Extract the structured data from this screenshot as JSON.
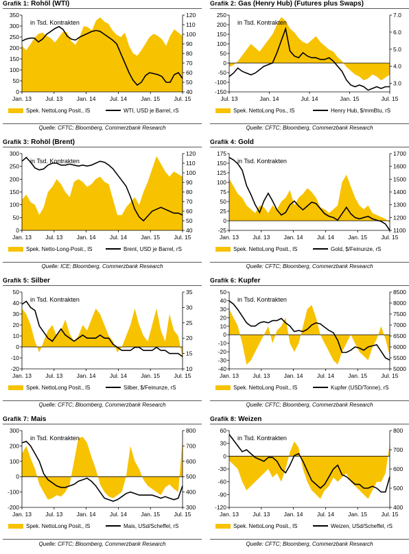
{
  "colors": {
    "fill": "#f7c200",
    "line": "#000000",
    "axis": "#000000"
  },
  "chart_data": [
    {
      "type": "area",
      "prefix": "Grafik 1:",
      "title": "Rohöl (WTI)",
      "annotation": "in Tsd. Kontrakten",
      "source": "Quelle: CFTC; Bloomberg, Commerzbank Research",
      "xticks": [
        "Jan. 13",
        "Jul. 13",
        "Jan. 14",
        "Jul. 14",
        "Jan. 15",
        "Jul. 15"
      ],
      "ylim": [
        0,
        350
      ],
      "yticks": [
        0,
        50,
        100,
        150,
        200,
        250,
        300,
        350
      ],
      "y2lim": [
        40,
        120
      ],
      "y2ticks": [
        40,
        50,
        60,
        70,
        80,
        90,
        100,
        110,
        120
      ],
      "series": [
        {
          "name": "Spek. NettoLong Posit., lS",
          "axis": "left",
          "values": [
            210,
            190,
            215,
            245,
            265,
            270,
            255,
            245,
            225,
            250,
            275,
            270,
            230,
            215,
            250,
            300,
            295,
            280,
            325,
            340,
            320,
            310,
            280,
            260,
            250,
            270,
            210,
            175,
            165,
            190,
            220,
            250,
            265,
            255,
            240,
            210,
            255,
            285,
            270,
            255
          ]
        },
        {
          "name": "WTI, USD je Barrel, rS",
          "axis": "right",
          "values": [
            93,
            95,
            96,
            96,
            92,
            95,
            100,
            103,
            106,
            108,
            105,
            98,
            95,
            94,
            97,
            99,
            101,
            103,
            104,
            103,
            100,
            97,
            94,
            90,
            80,
            70,
            60,
            52,
            47,
            50,
            57,
            60,
            59,
            58,
            56,
            50,
            50,
            58,
            60,
            54
          ]
        }
      ]
    },
    {
      "type": "area",
      "prefix": "Grafik 2:",
      "title": "Gas (Henry Hub) (Futures plus Swaps)",
      "annotation": "in Tsd. Kontrakten",
      "source": "Quelle: CFTC; Bloomberg, Commerzbank Research",
      "xticks": [
        "Jul. 13",
        "Jan. 14",
        "Jul. 14",
        "Jan. 15",
        "Jul. 15"
      ],
      "ylim": [
        -150,
        250
      ],
      "yticks": [
        -150,
        -100,
        -50,
        0,
        50,
        100,
        150,
        200,
        250
      ],
      "y2lim": [
        2.5,
        7.0
      ],
      "y2ticks": [
        3.0,
        4.0,
        5.0,
        6.0,
        7.0
      ],
      "series": [
        {
          "name": "Spek. NettoLong Pos., lS",
          "axis": "left",
          "values": [
            -20,
            -10,
            10,
            40,
            70,
            100,
            80,
            60,
            90,
            120,
            150,
            200,
            240,
            220,
            180,
            160,
            130,
            110,
            100,
            120,
            140,
            110,
            90,
            70,
            60,
            30,
            10,
            -20,
            -40,
            -60,
            -70,
            -90,
            -80,
            -60,
            -70,
            -90,
            -75,
            -60
          ]
        },
        {
          "name": "Henry Hub, $/mmBtu, rS",
          "axis": "right",
          "values": [
            3.4,
            3.6,
            3.9,
            3.7,
            3.6,
            3.5,
            3.6,
            3.8,
            4.0,
            4.1,
            4.2,
            4.8,
            5.5,
            6.2,
            4.9,
            4.6,
            4.5,
            4.8,
            4.6,
            4.5,
            4.5,
            4.4,
            4.4,
            4.5,
            4.3,
            4.0,
            3.7,
            3.2,
            2.9,
            2.8,
            2.9,
            2.8,
            2.6,
            2.7,
            2.8,
            2.7,
            2.8,
            2.8
          ]
        }
      ]
    },
    {
      "type": "area",
      "prefix": "Grafik 3:",
      "title": "Rohöl (Brent)",
      "annotation": "in Tsd. Kontrakten",
      "source": "Quelle: ICE; Bloomberg, Commerzbank Research",
      "xticks": [
        "Jan. 13",
        "Jul. 13",
        "Jan. 14",
        "Jul. 14",
        "Jan. 15",
        "Jul. 15"
      ],
      "ylim": [
        0,
        300
      ],
      "yticks": [
        0,
        50,
        100,
        150,
        200,
        250,
        300
      ],
      "y2lim": [
        40,
        120
      ],
      "y2ticks": [
        40,
        50,
        60,
        70,
        80,
        90,
        100,
        110,
        120
      ],
      "series": [
        {
          "name": "Spek. Netto-Long-Posit., lS",
          "axis": "left",
          "values": [
            120,
            140,
            110,
            100,
            60,
            90,
            150,
            170,
            200,
            180,
            150,
            130,
            190,
            200,
            190,
            170,
            180,
            200,
            210,
            190,
            180,
            120,
            60,
            60,
            90,
            110,
            130,
            100,
            150,
            190,
            240,
            290,
            260,
            230,
            210,
            230,
            220,
            210
          ]
        },
        {
          "name": "Brent, USD je Barrel, rS",
          "axis": "right",
          "values": [
            112,
            116,
            111,
            105,
            103,
            104,
            108,
            110,
            110,
            108,
            108,
            109,
            108,
            107,
            108,
            107,
            108,
            110,
            112,
            111,
            108,
            104,
            98,
            92,
            86,
            75,
            62,
            54,
            50,
            55,
            60,
            62,
            64,
            62,
            60,
            58,
            58,
            56
          ]
        }
      ]
    },
    {
      "type": "area",
      "prefix": "Grafik 4:",
      "title": "Gold",
      "annotation": "in Tsd. Kontrakten",
      "source": "Quelle: CFTC; Bloomberg, Commerzbank Research",
      "xticks": [
        "Jan. 13",
        "Jul. 13",
        "Jan. 14",
        "Jul. 14",
        "Jan. 15",
        "Jul. 15"
      ],
      "ylim": [
        -25,
        175
      ],
      "yticks": [
        -25,
        0,
        25,
        50,
        75,
        100,
        125,
        150,
        175
      ],
      "y2lim": [
        1100,
        1700
      ],
      "y2ticks": [
        1100,
        1200,
        1300,
        1400,
        1500,
        1600,
        1700
      ],
      "series": [
        {
          "name": "Spek. NettoLong Posit., lS",
          "axis": "left",
          "values": [
            110,
            90,
            70,
            60,
            40,
            30,
            20,
            40,
            35,
            20,
            40,
            30,
            50,
            60,
            80,
            40,
            60,
            70,
            85,
            75,
            60,
            35,
            30,
            20,
            30,
            40,
            100,
            120,
            90,
            60,
            40,
            30,
            40,
            20,
            15,
            10,
            5,
            -5
          ]
        },
        {
          "name": "Gold, $/Feinunze, rS",
          "axis": "right",
          "values": [
            1670,
            1650,
            1620,
            1570,
            1450,
            1380,
            1300,
            1240,
            1330,
            1390,
            1330,
            1260,
            1220,
            1240,
            1300,
            1330,
            1290,
            1260,
            1290,
            1320,
            1310,
            1270,
            1230,
            1210,
            1200,
            1180,
            1230,
            1280,
            1230,
            1200,
            1190,
            1200,
            1210,
            1190,
            1180,
            1170,
            1150,
            1100
          ]
        }
      ]
    },
    {
      "type": "area",
      "prefix": "Grafik 5:",
      "title": "Silber",
      "annotation": "in Tsd. Kontrakten",
      "source": "Quelle: CFTC; Bloomberg, Commerzbank Research",
      "xticks": [
        "Jan. 13",
        "Jul. 13",
        "Jan. 14",
        "Jul. 14",
        "Jan. 15",
        "Jul. 15"
      ],
      "ylim": [
        -20,
        50
      ],
      "yticks": [
        -20,
        -10,
        0,
        10,
        20,
        30,
        40,
        50
      ],
      "y2lim": [
        10,
        35
      ],
      "y2ticks": [
        10,
        15,
        20,
        25,
        30,
        35
      ],
      "series": [
        {
          "name": "Spek. NettoLong Posit., lS",
          "axis": "left",
          "values": [
            35,
            30,
            20,
            5,
            -5,
            5,
            15,
            20,
            10,
            15,
            25,
            12,
            5,
            10,
            20,
            15,
            25,
            35,
            30,
            20,
            10,
            5,
            -5,
            0,
            10,
            20,
            35,
            20,
            10,
            5,
            20,
            35,
            15,
            5,
            30,
            15,
            10,
            -10
          ]
        },
        {
          "name": "Silber, $/Feinunze, rS",
          "axis": "right",
          "values": [
            31,
            32,
            30,
            29,
            24,
            22,
            20,
            19,
            21,
            23,
            21,
            20,
            19,
            20,
            21,
            20,
            20,
            20,
            21,
            20,
            20,
            18,
            17,
            16,
            16,
            16,
            17,
            17,
            16,
            16,
            16,
            17,
            16,
            16,
            15,
            15,
            15,
            14
          ]
        }
      ]
    },
    {
      "type": "area",
      "prefix": "Grafik 6:",
      "title": "Kupfer",
      "annotation": "in Tsd. Kontrakten",
      "source": "Quelle: CFTC; Bloomberg, Commerzbank Research",
      "xticks": [
        "Jan. 13",
        "Jul. 13",
        "Jan. 14",
        "Jul. 14",
        "Jan. 15",
        "Jul. 15"
      ],
      "ylim": [
        -40,
        50
      ],
      "yticks": [
        -40,
        -30,
        -20,
        -10,
        0,
        10,
        20,
        30,
        40,
        50
      ],
      "y2lim": [
        5000,
        8500
      ],
      "y2ticks": [
        5000,
        5500,
        6000,
        6500,
        7000,
        7500,
        8000,
        8500
      ],
      "series": [
        {
          "name": "Spek. NettoLong Posit., lS",
          "axis": "left",
          "values": [
            30,
            20,
            10,
            -10,
            -35,
            -30,
            -20,
            -10,
            0,
            10,
            -10,
            5,
            10,
            20,
            -10,
            -20,
            -10,
            10,
            30,
            35,
            20,
            0,
            -10,
            -20,
            -30,
            -35,
            -20,
            -10,
            0,
            -10,
            -20,
            -25,
            -30,
            -15,
            -5,
            10,
            -5,
            -25
          ]
        },
        {
          "name": "Kupfer (USD/Tonne), rS",
          "axis": "right",
          "values": [
            8100,
            7950,
            7700,
            7400,
            7100,
            6950,
            6950,
            7100,
            7150,
            7100,
            7200,
            7200,
            7300,
            7100,
            6950,
            6700,
            6750,
            6700,
            6800,
            7000,
            7100,
            7050,
            6900,
            6750,
            6650,
            6300,
            5750,
            5750,
            5850,
            6000,
            5950,
            5850,
            6000,
            6050,
            6100,
            5800,
            5500,
            5400
          ]
        }
      ]
    },
    {
      "type": "area",
      "prefix": "Grafik 7:",
      "title": "Mais",
      "annotation": "in Tsd. Kontrakten",
      "source": "Quelle: CFTC; Bloomberg, Commerzbank Research",
      "xticks": [
        "Jan. 13",
        "Jul. 13",
        "Jan. 14",
        "Jul. 14",
        "Jan. 15",
        "Jul. 15"
      ],
      "ylim": [
        -200,
        300
      ],
      "yticks": [
        -200,
        -100,
        0,
        100,
        200,
        300
      ],
      "y2lim": [
        300,
        800
      ],
      "y2ticks": [
        300,
        400,
        500,
        600,
        700,
        800
      ],
      "series": [
        {
          "name": "Spek. NettoLong Posit., lS",
          "axis": "left",
          "values": [
            150,
            200,
            120,
            50,
            -50,
            -100,
            -150,
            -140,
            -120,
            -130,
            -100,
            -50,
            100,
            250,
            260,
            220,
            130,
            50,
            -50,
            -100,
            -130,
            -140,
            -120,
            -100,
            0,
            200,
            100,
            50,
            -20,
            -60,
            -80,
            -100,
            -120,
            -70,
            -50,
            -80,
            -100,
            240
          ]
        },
        {
          "name": "Mais, USd/Scheffel, rS",
          "axis": "right",
          "values": [
            720,
            730,
            700,
            650,
            600,
            520,
            480,
            460,
            440,
            430,
            430,
            440,
            450,
            470,
            480,
            490,
            470,
            440,
            400,
            360,
            350,
            340,
            350,
            370,
            390,
            400,
            390,
            380,
            380,
            380,
            380,
            370,
            360,
            370,
            360,
            350,
            360,
            440
          ]
        }
      ]
    },
    {
      "type": "area",
      "prefix": "Grafik 8:",
      "title": "Weizen",
      "annotation": "in Tsd. Kontrakten",
      "source": "Quelle: CFTC; Bloomberg, Commerzbank Research",
      "xticks": [
        "Jan. 13",
        "Jul. 13",
        "Jan. 14",
        "Jul. 14",
        "Jan. 15",
        "Jul. 15"
      ],
      "ylim": [
        -120,
        60
      ],
      "yticks": [
        -120,
        -90,
        -60,
        -30,
        0,
        30,
        60
      ],
      "y2lim": [
        400,
        800
      ],
      "y2ticks": [
        400,
        500,
        600,
        700,
        800
      ],
      "series": [
        {
          "name": "Spek. NettoLong Posit., lS",
          "axis": "left",
          "values": [
            -10,
            -20,
            -30,
            -60,
            -80,
            -70,
            -60,
            -50,
            -40,
            -30,
            -50,
            -40,
            -60,
            -30,
            10,
            35,
            20,
            -30,
            -60,
            -80,
            -90,
            -100,
            -80,
            -70,
            -50,
            -60,
            -50,
            -40,
            -60,
            -70,
            -80,
            -90,
            -100,
            -80,
            -60,
            -60,
            -40,
            30
          ]
        },
        {
          "name": "Weizen, USd/Scheffel, rS",
          "axis": "right",
          "values": [
            780,
            750,
            720,
            690,
            700,
            680,
            660,
            650,
            640,
            660,
            660,
            640,
            600,
            580,
            620,
            670,
            680,
            640,
            590,
            540,
            520,
            500,
            520,
            560,
            600,
            620,
            570,
            560,
            540,
            520,
            520,
            500,
            500,
            510,
            500,
            480,
            480,
            560
          ]
        }
      ]
    }
  ]
}
